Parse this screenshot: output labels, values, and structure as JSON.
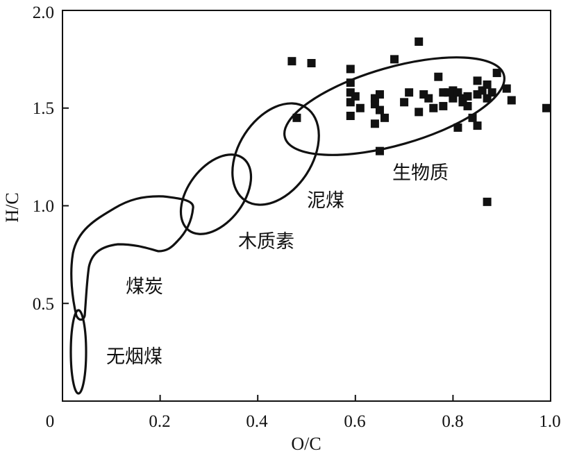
{
  "chart_data": {
    "type": "scatter",
    "xlabel": "O/C",
    "ylabel": "H/C",
    "xlim": [
      0,
      1.0
    ],
    "ylim": [
      0,
      2.0
    ],
    "xticks": [
      "0",
      "0.2",
      "0.4",
      "0.6",
      "0.8",
      "1.0"
    ],
    "yticks": [
      "0.5",
      "1.0",
      "1.5",
      "2.0"
    ],
    "grid": false,
    "regions": [
      {
        "label": "无烟煤"
      },
      {
        "label": "煤炭"
      },
      {
        "label": "木质素"
      },
      {
        "label": "泥煤"
      },
      {
        "label": "生物质"
      }
    ],
    "points": [
      [
        0.47,
        1.74
      ],
      [
        0.51,
        1.73
      ],
      [
        0.48,
        1.45
      ],
      [
        0.59,
        1.7
      ],
      [
        0.73,
        1.84
      ],
      [
        0.68,
        1.75
      ],
      [
        0.59,
        1.63
      ],
      [
        0.59,
        1.58
      ],
      [
        0.59,
        1.53
      ],
      [
        0.59,
        1.46
      ],
      [
        0.6,
        1.56
      ],
      [
        0.61,
        1.5
      ],
      [
        0.64,
        1.55
      ],
      [
        0.65,
        1.57
      ],
      [
        0.64,
        1.52
      ],
      [
        0.65,
        1.49
      ],
      [
        0.66,
        1.45
      ],
      [
        0.64,
        1.42
      ],
      [
        0.65,
        1.28
      ],
      [
        0.7,
        1.53
      ],
      [
        0.71,
        1.58
      ],
      [
        0.73,
        1.48
      ],
      [
        0.74,
        1.57
      ],
      [
        0.75,
        1.55
      ],
      [
        0.76,
        1.5
      ],
      [
        0.77,
        1.66
      ],
      [
        0.78,
        1.58
      ],
      [
        0.78,
        1.51
      ],
      [
        0.79,
        1.58
      ],
      [
        0.8,
        1.59
      ],
      [
        0.8,
        1.55
      ],
      [
        0.81,
        1.58
      ],
      [
        0.81,
        1.4
      ],
      [
        0.82,
        1.55
      ],
      [
        0.82,
        1.53
      ],
      [
        0.83,
        1.51
      ],
      [
        0.83,
        1.56
      ],
      [
        0.84,
        1.45
      ],
      [
        0.85,
        1.41
      ],
      [
        0.85,
        1.64
      ],
      [
        0.85,
        1.57
      ],
      [
        0.86,
        1.59
      ],
      [
        0.87,
        1.55
      ],
      [
        0.87,
        1.62
      ],
      [
        0.88,
        1.58
      ],
      [
        0.89,
        1.68
      ],
      [
        0.91,
        1.6
      ],
      [
        0.92,
        1.54
      ],
      [
        0.87,
        1.02
      ],
      [
        1.0,
        1.5
      ]
    ]
  }
}
